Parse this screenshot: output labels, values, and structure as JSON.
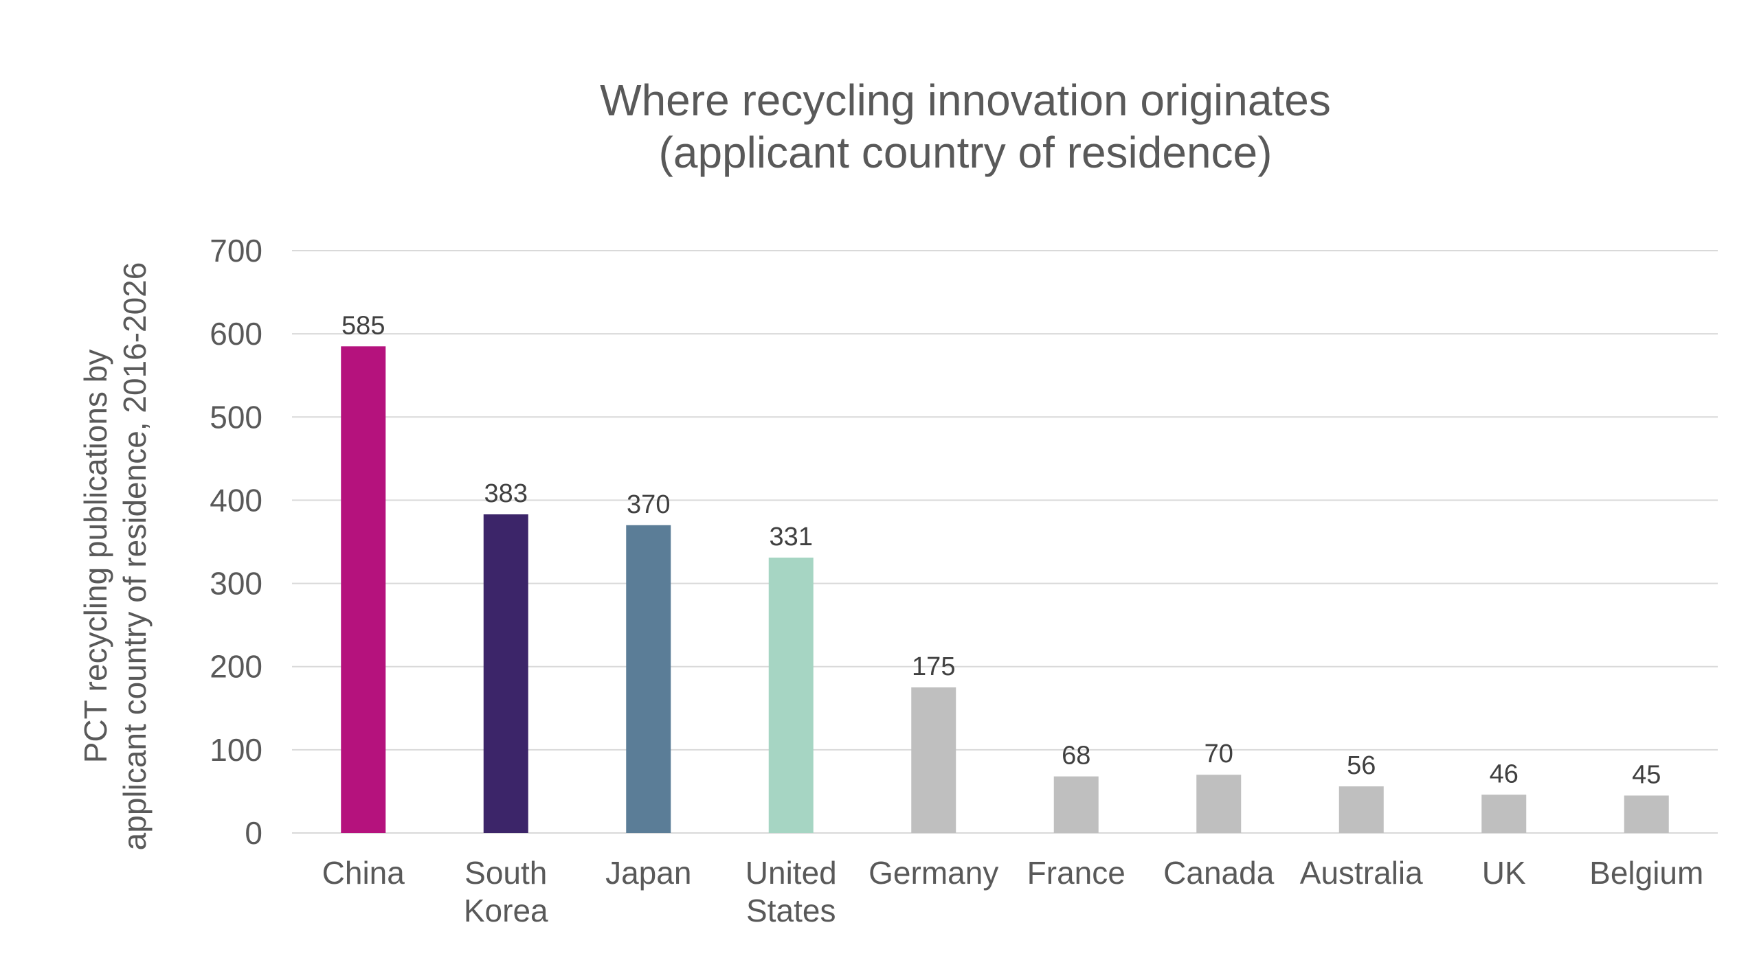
{
  "chart_data": {
    "type": "bar",
    "title": [
      "Where recycling innovation originates",
      "(applicant country of residence)"
    ],
    "ylabel": [
      "PCT recycling publications by",
      "applicant country of residence, 2016-2026"
    ],
    "xlabel": "",
    "ylim": [
      0,
      700
    ],
    "yticks": [
      0,
      100,
      200,
      300,
      400,
      500,
      600,
      700
    ],
    "grid": true,
    "legend": "none",
    "categories": [
      [
        "China"
      ],
      [
        "South",
        "Korea"
      ],
      [
        "Japan"
      ],
      [
        "United",
        "States"
      ],
      [
        "Germany"
      ],
      [
        "France"
      ],
      [
        "Canada"
      ],
      [
        "Australia"
      ],
      [
        "UK"
      ],
      [
        "Belgium"
      ]
    ],
    "values": [
      585,
      383,
      370,
      331,
      175,
      68,
      70,
      56,
      46,
      45
    ],
    "data_labels": [
      "585",
      "383",
      "370",
      "331",
      "175",
      "68",
      "70",
      "56",
      "46",
      "45"
    ],
    "colors": [
      "#b5127d",
      "#3c2569",
      "#5b7d97",
      "#a6d5c3",
      "#bfbfbf",
      "#bfbfbf",
      "#bfbfbf",
      "#bfbfbf",
      "#bfbfbf",
      "#bfbfbf"
    ]
  }
}
